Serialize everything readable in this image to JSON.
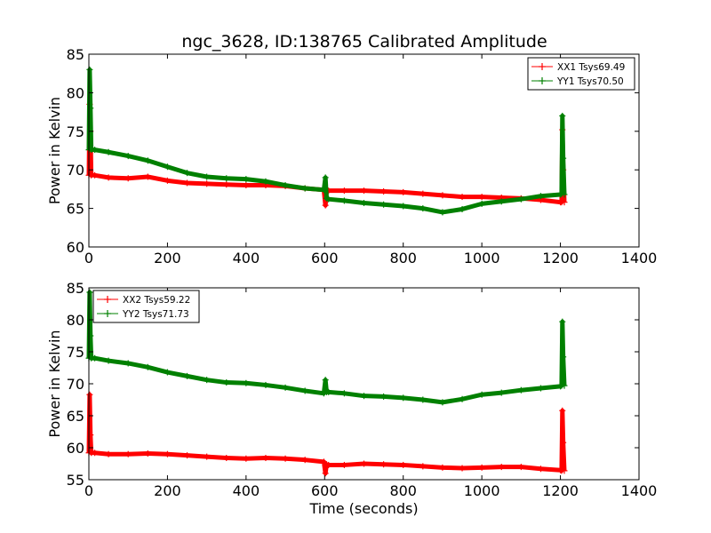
{
  "title": "ngc_3628, ID:138765 Calibrated Amplitude",
  "chart_data": [
    {
      "type": "line",
      "title": "ngc_3628, ID:138765 Calibrated Amplitude",
      "xlabel": "",
      "ylabel": "Power in Kelvin",
      "xlim": [
        0,
        1400
      ],
      "ylim": [
        60,
        85
      ],
      "xticks": [
        0,
        200,
        400,
        600,
        800,
        1000,
        1200,
        1400
      ],
      "yticks": [
        60,
        65,
        70,
        75,
        80,
        85
      ],
      "grid": false,
      "legend_position": "top-right",
      "series": [
        {
          "name": "XX1 Tsys69.49",
          "color": "#ff0000",
          "x": [
            0,
            2,
            4,
            6,
            15,
            50,
            100,
            150,
            200,
            250,
            300,
            350,
            400,
            450,
            500,
            550,
            598,
            602,
            605,
            610,
            650,
            700,
            750,
            800,
            850,
            900,
            950,
            1000,
            1050,
            1100,
            1150,
            1200,
            1203,
            1205,
            1207,
            1210
          ],
          "y": [
            69.3,
            78.5,
            75.0,
            69.3,
            69.3,
            69.0,
            68.9,
            69.1,
            68.6,
            68.3,
            68.2,
            68.1,
            68.0,
            68.0,
            67.9,
            67.6,
            67.4,
            65.4,
            67.3,
            67.3,
            67.3,
            67.3,
            67.2,
            67.1,
            66.9,
            66.7,
            66.5,
            66.5,
            66.4,
            66.3,
            66.1,
            65.8,
            65.8,
            75.2,
            70.0,
            65.8
          ]
        },
        {
          "name": "YY1 Tsys70.50",
          "color": "#008000",
          "x": [
            0,
            2,
            4,
            6,
            15,
            50,
            100,
            150,
            200,
            250,
            300,
            350,
            400,
            450,
            500,
            550,
            598,
            602,
            605,
            610,
            650,
            700,
            750,
            800,
            850,
            900,
            950,
            1000,
            1050,
            1100,
            1150,
            1200,
            1203,
            1205,
            1207,
            1210
          ],
          "y": [
            72.6,
            83.0,
            78.0,
            72.6,
            72.6,
            72.3,
            71.8,
            71.2,
            70.4,
            69.6,
            69.1,
            68.9,
            68.8,
            68.5,
            68.0,
            67.6,
            67.4,
            69.0,
            66.3,
            66.2,
            66.0,
            65.7,
            65.5,
            65.3,
            65.0,
            64.5,
            64.9,
            65.6,
            65.9,
            66.2,
            66.6,
            66.8,
            66.9,
            77.0,
            71.5,
            66.8
          ]
        }
      ]
    },
    {
      "type": "line",
      "title": "",
      "xlabel": "Time (seconds)",
      "ylabel": "Power in Kelvin",
      "xlim": [
        0,
        1400
      ],
      "ylim": [
        55,
        85
      ],
      "xticks": [
        0,
        200,
        400,
        600,
        800,
        1000,
        1200,
        1400
      ],
      "yticks": [
        55,
        60,
        65,
        70,
        75,
        80,
        85
      ],
      "grid": false,
      "legend_position": "top-left",
      "series": [
        {
          "name": "XX2 Tsys59.22",
          "color": "#ff0000",
          "x": [
            0,
            2,
            4,
            6,
            15,
            50,
            100,
            150,
            200,
            250,
            300,
            350,
            400,
            450,
            500,
            550,
            598,
            602,
            605,
            610,
            650,
            700,
            750,
            800,
            850,
            900,
            950,
            1000,
            1050,
            1100,
            1150,
            1200,
            1203,
            1205,
            1207,
            1210
          ],
          "y": [
            59.2,
            68.3,
            62.0,
            59.2,
            59.2,
            59.0,
            59.0,
            59.1,
            59.0,
            58.8,
            58.6,
            58.4,
            58.3,
            58.4,
            58.3,
            58.1,
            57.8,
            56.0,
            57.4,
            57.3,
            57.3,
            57.5,
            57.4,
            57.3,
            57.1,
            56.9,
            56.8,
            56.9,
            57.0,
            57.0,
            56.7,
            56.5,
            56.4,
            65.8,
            60.8,
            56.4
          ]
        },
        {
          "name": "YY2 Tsys71.73",
          "color": "#008000",
          "x": [
            0,
            2,
            4,
            6,
            15,
            50,
            100,
            150,
            200,
            250,
            300,
            350,
            400,
            450,
            500,
            550,
            598,
            602,
            605,
            610,
            650,
            700,
            750,
            800,
            850,
            900,
            950,
            1000,
            1050,
            1100,
            1150,
            1200,
            1203,
            1205,
            1207,
            1210
          ],
          "y": [
            74.0,
            84.3,
            77.5,
            74.0,
            74.0,
            73.6,
            73.2,
            72.6,
            71.8,
            71.2,
            70.6,
            70.2,
            70.1,
            69.8,
            69.4,
            68.9,
            68.5,
            70.6,
            68.7,
            68.7,
            68.5,
            68.1,
            68.0,
            67.8,
            67.5,
            67.1,
            67.6,
            68.3,
            68.6,
            69.0,
            69.3,
            69.6,
            69.7,
            79.7,
            74.2,
            69.7
          ]
        }
      ]
    }
  ]
}
